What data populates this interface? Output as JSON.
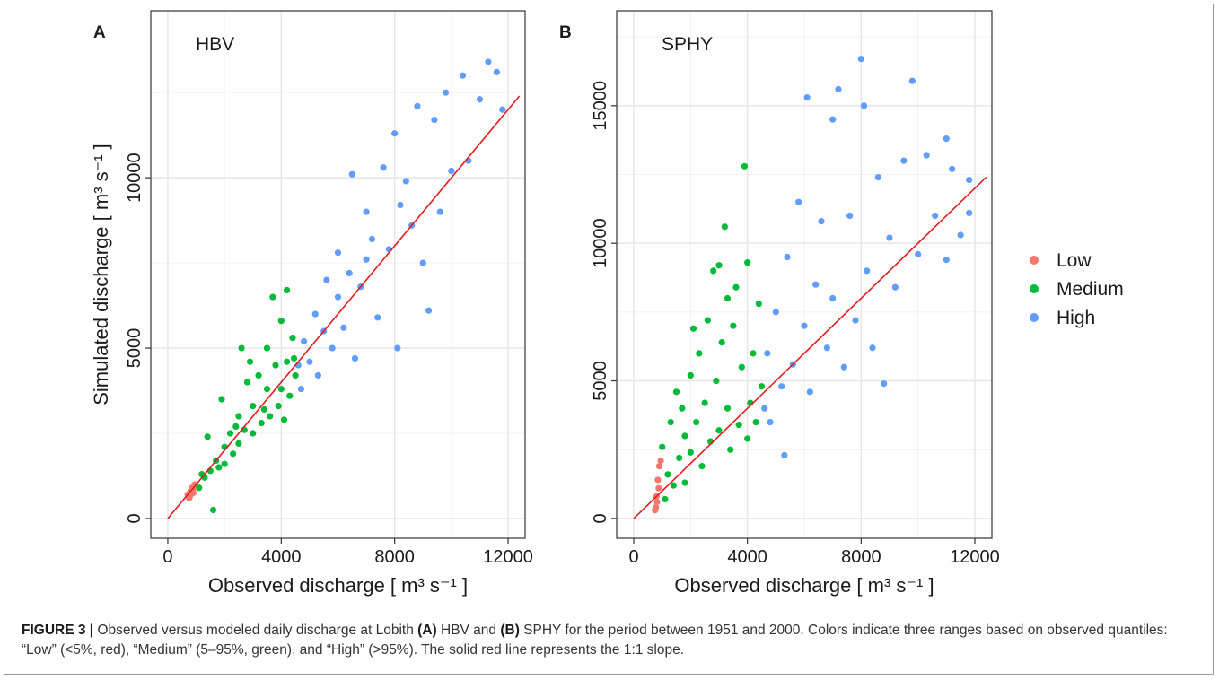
{
  "chart_data": [
    {
      "type": "scatter",
      "panel": "A",
      "title": "HBV",
      "xlabel": "Observed discharge  [ m³ s⁻¹ ]",
      "ylabel": "Simulated discharge  [ m³ s⁻¹ ]",
      "xlim": [
        -600,
        12600
      ],
      "ylim": [
        -580,
        14900
      ],
      "xticks": [
        0,
        4000,
        8000,
        12000
      ],
      "yticks": [
        0,
        5000,
        10000
      ],
      "minor_xticks": [
        2000,
        6000,
        10000
      ],
      "minor_yticks": [
        2500,
        7500,
        12500
      ],
      "grid": true,
      "reference_line": {
        "color": "#e31a1c",
        "x": [
          0,
          12400
        ],
        "y": [
          0,
          12400
        ]
      },
      "series": [
        {
          "name": "Low",
          "color": "#F8766D",
          "x": [
            700,
            750,
            800,
            850,
            900,
            950,
            780,
            880
          ],
          "values": [
            700,
            600,
            800,
            900,
            750,
            1000,
            650,
            850
          ]
        },
        {
          "name": "Medium",
          "color": "#00BA38",
          "x": [
            1100,
            1300,
            1500,
            1600,
            1700,
            1800,
            2000,
            2000,
            2200,
            2300,
            2500,
            2500,
            2700,
            2800,
            3000,
            3000,
            3200,
            3300,
            3500,
            3500,
            3600,
            3800,
            3900,
            4000,
            4000,
            4200,
            4200,
            4300,
            4400,
            4500,
            2600,
            3700,
            1900,
            1400,
            2900,
            4100,
            3400,
            2400,
            1200,
            4450
          ],
          "values": [
            900,
            1200,
            1400,
            250,
            1700,
            1500,
            2100,
            1600,
            2500,
            1900,
            3000,
            2200,
            2600,
            4000,
            3300,
            2500,
            4200,
            2800,
            3800,
            5000,
            3000,
            4500,
            3300,
            5800,
            3800,
            4600,
            6700,
            3600,
            5300,
            4200,
            5000,
            6500,
            3500,
            2400,
            4600,
            2900,
            3200,
            2700,
            1300,
            4700
          ]
        },
        {
          "name": "High",
          "color": "#619CFF",
          "x": [
            4600,
            4700,
            4800,
            5000,
            5200,
            5300,
            5500,
            5600,
            5800,
            6000,
            6000,
            6200,
            6400,
            6500,
            6600,
            6800,
            7000,
            7000,
            7200,
            7400,
            7600,
            7800,
            8000,
            8100,
            8200,
            8400,
            8600,
            8800,
            9000,
            9200,
            9400,
            9600,
            10000,
            10400,
            10600,
            11000,
            11300,
            11600,
            11800,
            9800
          ],
          "values": [
            4500,
            3800,
            5200,
            4600,
            6000,
            4200,
            5500,
            7000,
            5000,
            6500,
            7800,
            5600,
            7200,
            10100,
            4700,
            6800,
            9000,
            7600,
            8200,
            5900,
            10300,
            7900,
            11300,
            5000,
            9200,
            9900,
            8600,
            12100,
            7500,
            6100,
            11700,
            9000,
            10200,
            13000,
            10500,
            12300,
            13400,
            13100,
            12000,
            12500
          ]
        }
      ]
    },
    {
      "type": "scatter",
      "panel": "B",
      "title": "SPHY",
      "xlabel": "Observed discharge  [ m³ s⁻¹ ]",
      "xlim": [
        -600,
        12600
      ],
      "ylim": [
        -720,
        18450
      ],
      "xticks": [
        0,
        4000,
        8000,
        12000
      ],
      "yticks": [
        0,
        5000,
        10000,
        15000
      ],
      "minor_xticks": [
        2000,
        6000,
        10000
      ],
      "minor_yticks": [
        2500,
        7500,
        12500,
        17500
      ],
      "grid": true,
      "reference_line": {
        "color": "#e31a1c",
        "x": [
          0,
          12400
        ],
        "y": [
          0,
          12400
        ]
      },
      "series": [
        {
          "name": "Low",
          "color": "#F8766D",
          "x": [
            750,
            800,
            850,
            900,
            950,
            820,
            880,
            780
          ],
          "values": [
            300,
            800,
            1400,
            1900,
            2100,
            600,
            1100,
            400
          ]
        },
        {
          "name": "Medium",
          "color": "#00BA38",
          "x": [
            1100,
            1200,
            1300,
            1400,
            1500,
            1600,
            1800,
            1800,
            2000,
            2000,
            2200,
            2300,
            2400,
            2500,
            2600,
            2700,
            2800,
            2900,
            3000,
            3100,
            3200,
            3300,
            3400,
            3500,
            3600,
            3700,
            3800,
            3900,
            4000,
            4100,
            4200,
            4300,
            4400,
            4500,
            1000,
            1700,
            2100,
            3000,
            3300,
            4000
          ],
          "values": [
            700,
            1600,
            3500,
            1200,
            4600,
            2200,
            3000,
            1300,
            5200,
            2400,
            3500,
            6000,
            1900,
            4200,
            7200,
            2800,
            9000,
            5000,
            3200,
            6400,
            10600,
            4000,
            2500,
            7000,
            8400,
            3400,
            5500,
            12800,
            9300,
            4200,
            6000,
            3500,
            7800,
            4800,
            2600,
            4000,
            6900,
            9200,
            8000,
            2900
          ]
        },
        {
          "name": "High",
          "color": "#619CFF",
          "x": [
            4600,
            4700,
            4800,
            5000,
            5200,
            5300,
            5400,
            5600,
            5800,
            6000,
            6100,
            6200,
            6400,
            6600,
            6800,
            7000,
            7000,
            7200,
            7400,
            7600,
            7800,
            8000,
            8100,
            8200,
            8400,
            8600,
            8800,
            9000,
            9200,
            9500,
            9800,
            10000,
            10300,
            10600,
            11000,
            11200,
            11500,
            11800,
            11800,
            11000
          ],
          "values": [
            4000,
            6000,
            3500,
            7500,
            4800,
            2300,
            9500,
            5600,
            11500,
            7000,
            15300,
            4600,
            8500,
            10800,
            6200,
            14500,
            8000,
            15600,
            5500,
            11000,
            7200,
            16700,
            15000,
            9000,
            6200,
            12400,
            4900,
            10200,
            8400,
            13000,
            15900,
            9600,
            13200,
            11000,
            13800,
            12700,
            10300,
            12300,
            11100,
            9400
          ]
        }
      ]
    }
  ],
  "caption": [
    "FIGURE 3 |",
    " Observed versus modeled daily discharge at Lobith ",
    "(A)",
    " HBV and ",
    "(B)",
    " SPHY for the period between 1951 and 2000. Colors indicate three ranges based on observed quantiles: “Low” (<5%, red), “Medium” (5–95%, green), and “High” (>95%). The solid red line represents the 1:1 slope."
  ]
}
